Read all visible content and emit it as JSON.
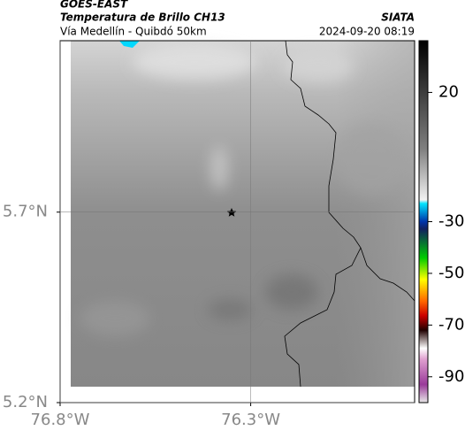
{
  "header": {
    "title": "GOES-EAST",
    "subtitle": "Temperatura de Brillo CH13",
    "location": "Vía Medellín - Quibdó 50km",
    "source": "SIATA",
    "datetime": "2024-09-20 08:19"
  },
  "map": {
    "xlim": [
      -76.8,
      -75.87
    ],
    "ylim": [
      5.2,
      6.15
    ],
    "xticks": [
      {
        "value": -76.8,
        "label": "76.8°W"
      },
      {
        "value": -76.3,
        "label": "76.3°W"
      }
    ],
    "yticks": [
      {
        "value": 5.7,
        "label": "5.7°N"
      },
      {
        "value": 5.2,
        "label": "5.2°N"
      }
    ],
    "grid": true
  },
  "colorbar": {
    "lim": [
      -100,
      40
    ],
    "ticks": [
      20,
      -30,
      -50,
      -70,
      -90
    ]
  }
}
